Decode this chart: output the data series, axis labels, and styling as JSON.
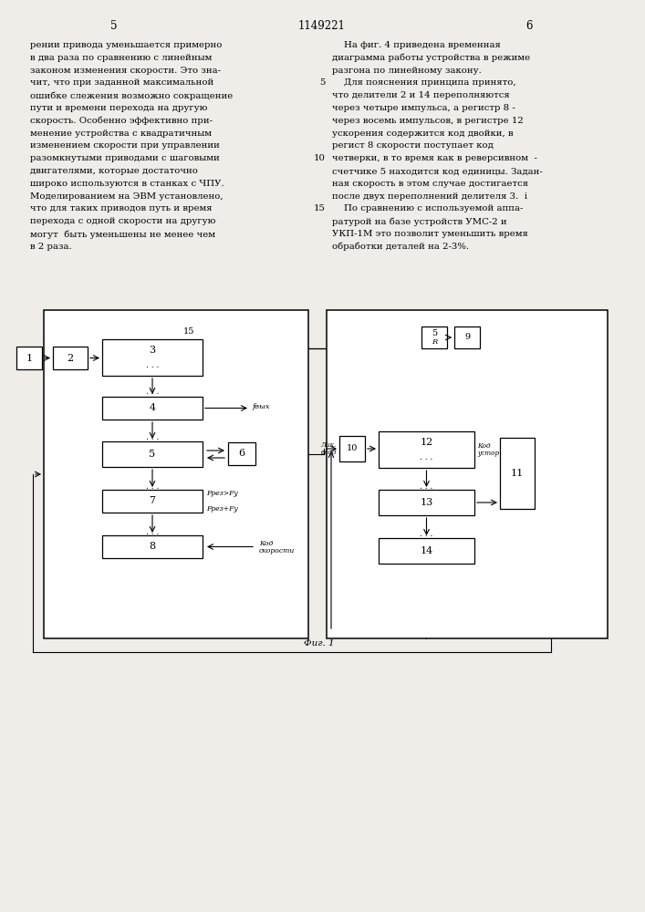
{
  "patent_number": "1149221",
  "page_number_left": "5",
  "page_number_right": "6",
  "left_col": [
    "рении привода уменьшается примерно",
    "в два раза по сравнению с линейным",
    "законом изменения скорости. Это зна-",
    "чит, что при заданной максимальной",
    "ошибке слежения возможно сокращение",
    "пути и времени перехода на другую",
    "скорость. Особенно эффективно при-",
    "менение устройства с квадратичным",
    "изменением скорости при управлении",
    "разомкнутыми приводами с шаговыми",
    "двигателями, которые достаточно",
    "широко используются в станках с ЧПУ.",
    "Моделированием на ЭВМ установлено,",
    "что для таких приводов путь и время",
    "перехода с одной скорости на другую",
    "могут  быть уменьшены не менее чем",
    "в 2 раза."
  ],
  "right_col": [
    "    На фиг. 4 приведена временная",
    "диаграмма работы устройства в режиме",
    "разгона по линейному закону.",
    "    Для пояснения принципа принято,",
    "что делители 2 и 14 переполняются",
    "через четыре импульса, а регистр 8 -",
    "через восемь импульсов, в регистре 12",
    "ускорения содержится код двойки, в",
    "регист 8 скорости поступает код",
    "четверки, в то время как в реверсивном  -",
    "счетчике 5 находится код единицы. Задан-",
    "ная скорость в этом случае достигается",
    "после двух переполнений делителя 3.  i",
    "    По сравнению с используемой аппа-",
    "ратурой на базе устройств УМС-2 и",
    "УКП-1М это позволит уменьшить время",
    "обработки деталей на 2-3%."
  ],
  "line_numbers": {
    "3": "5",
    "9": "10",
    "13": "15"
  },
  "fig_caption": "Фиг. 1",
  "bg_color": "#f0ede8"
}
